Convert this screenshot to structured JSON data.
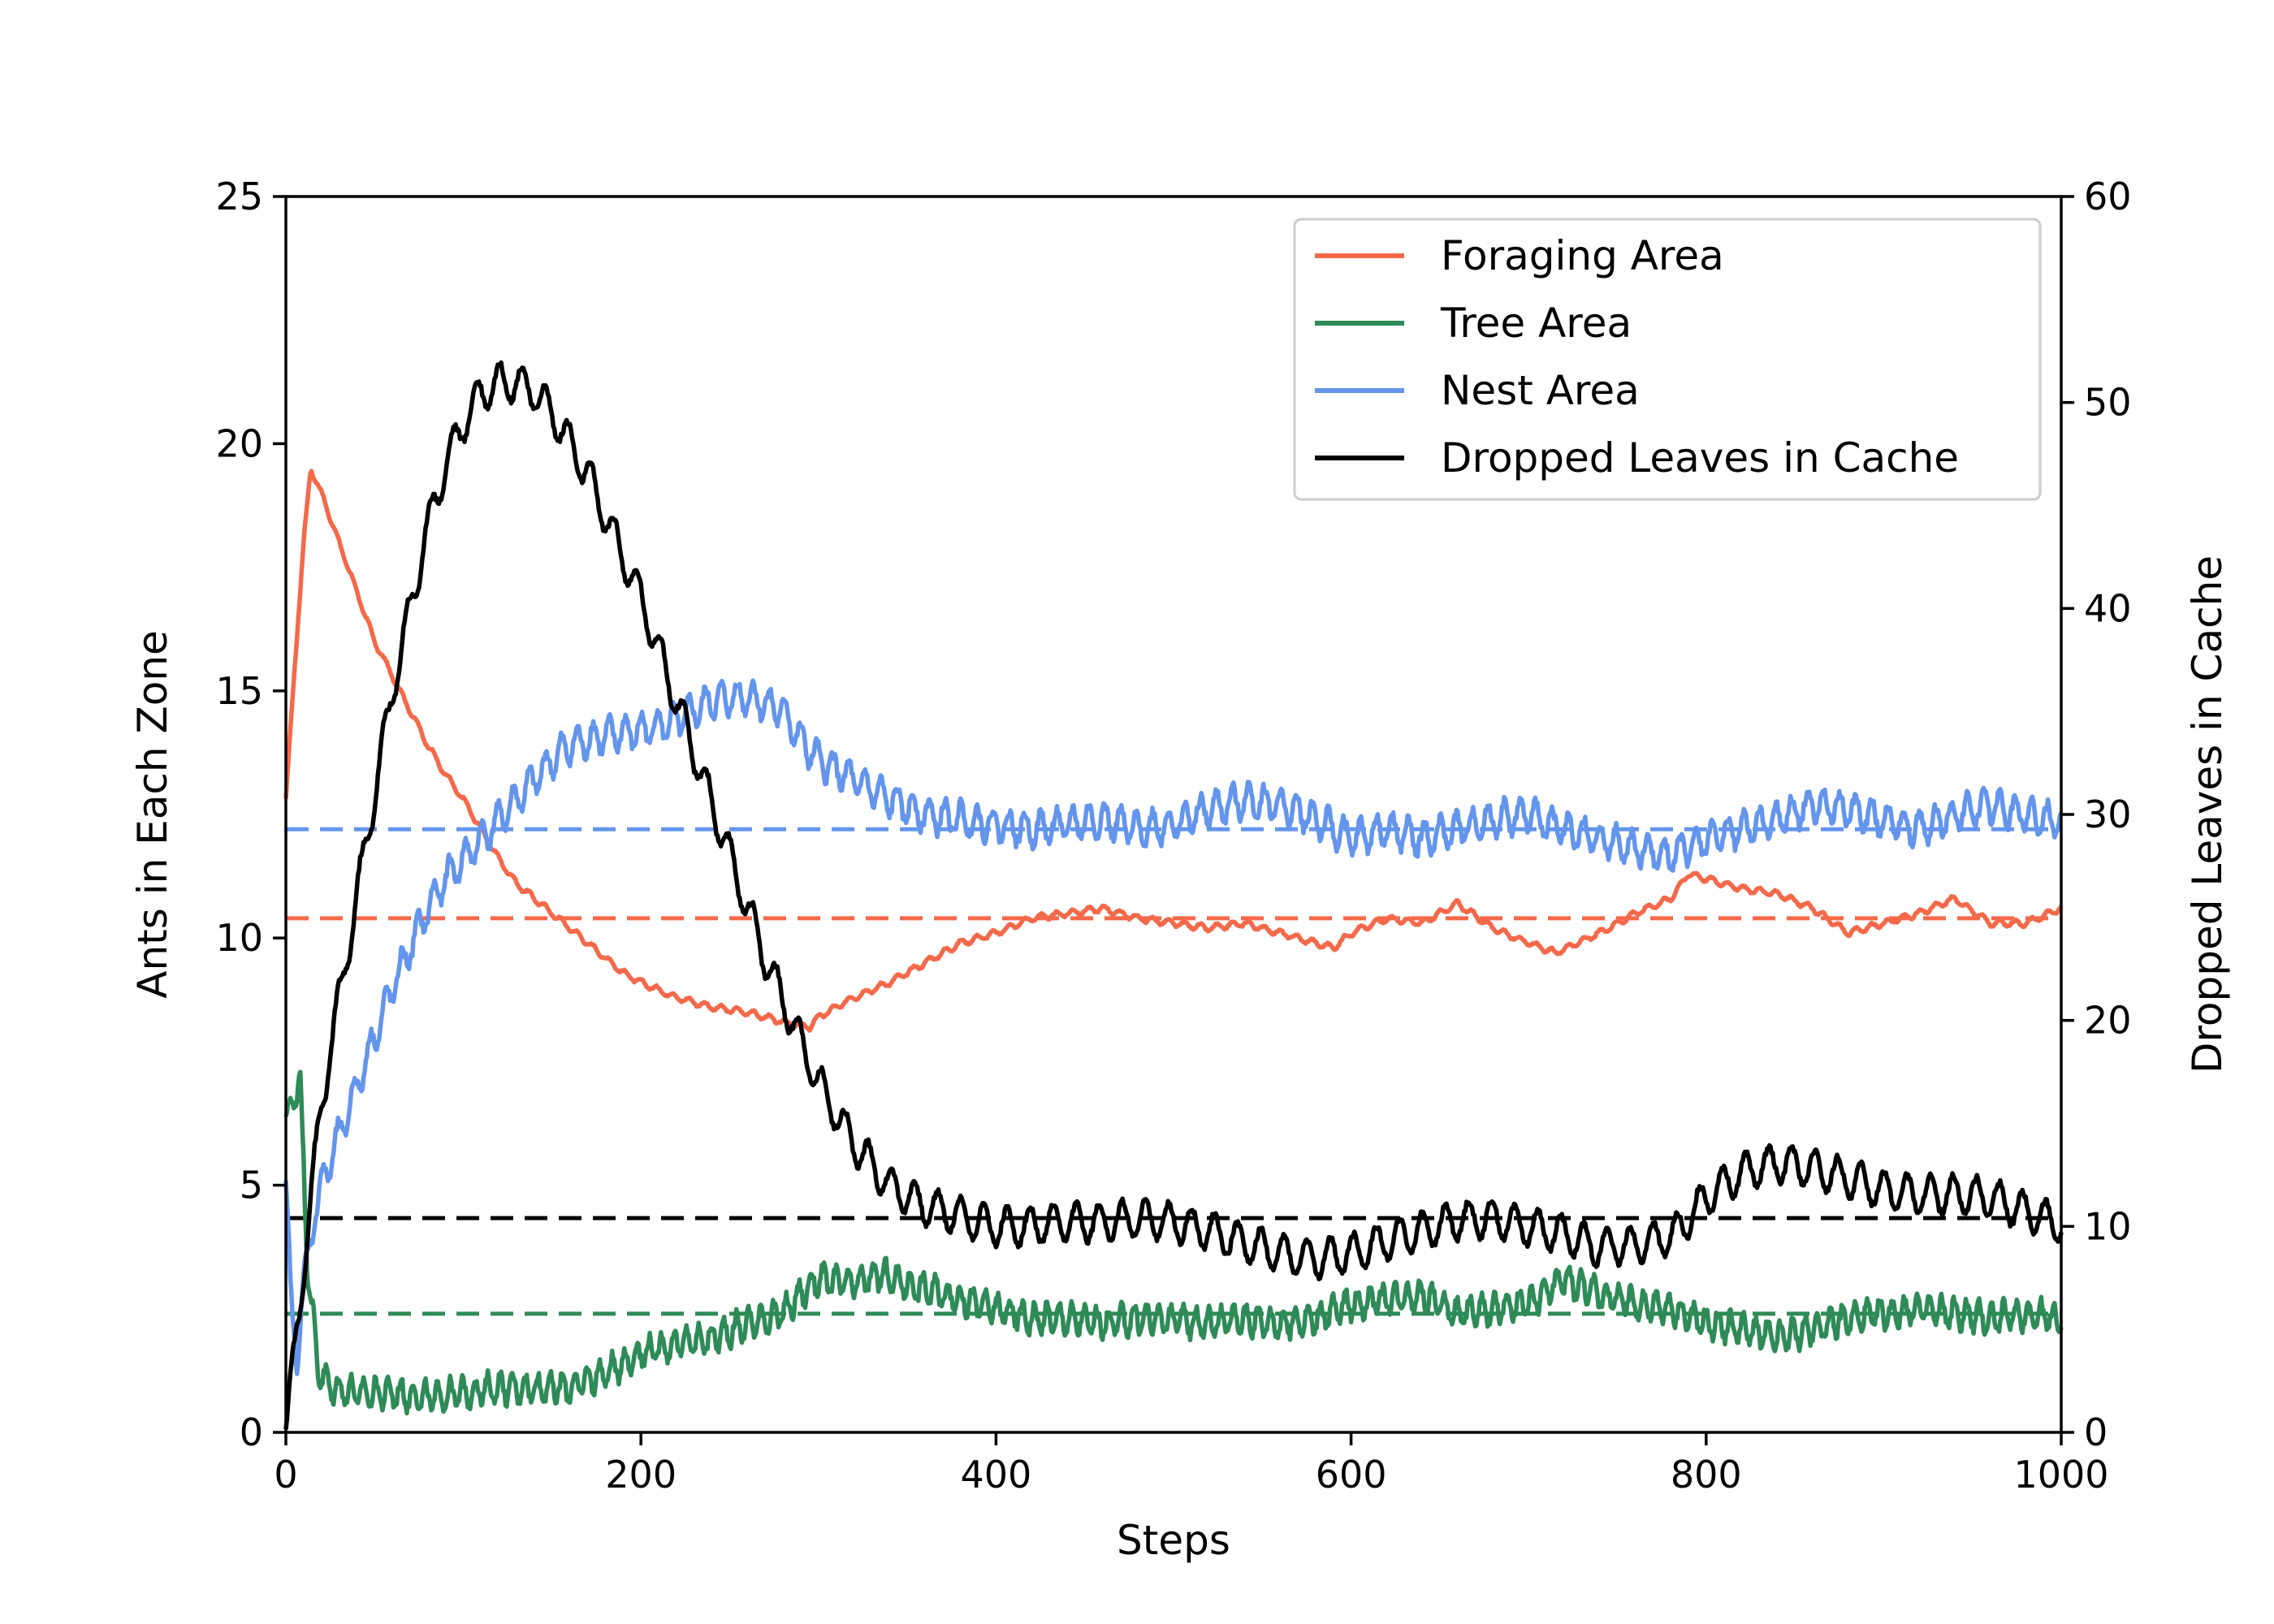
{
  "chart_data": {
    "type": "line",
    "title": "",
    "xlabel": "Steps",
    "ylabel_left": "Ants in Each Zone",
    "ylabel_right": "Dropped Leaves in Cache",
    "xlim": [
      0,
      1000
    ],
    "ylim_left": [
      0,
      25
    ],
    "ylim_right": [
      0,
      60
    ],
    "x_ticks": [
      0,
      200,
      400,
      600,
      800,
      1000
    ],
    "y_ticks_left": [
      0,
      5,
      10,
      15,
      20,
      25
    ],
    "y_ticks_right": [
      0,
      10,
      20,
      30,
      40,
      50,
      60
    ],
    "grid": false,
    "legend_position": "top-right",
    "colors": {
      "foraging": "#f4694a",
      "tree": "#2e8b57",
      "nest": "#6495ed",
      "leaves": "#000000"
    },
    "series": [
      {
        "key": "foraging",
        "name": "Foraging Area",
        "axis": "left",
        "x": [
          0,
          5,
          10,
          14,
          20,
          30,
          40,
          50,
          60,
          70,
          80,
          90,
          100,
          110,
          120,
          130,
          140,
          150,
          160,
          170,
          180,
          190,
          200,
          220,
          240,
          260,
          280,
          295,
          300,
          320,
          340,
          360,
          380,
          400,
          420,
          440,
          460,
          480,
          500,
          520,
          540,
          560,
          580,
          590,
          600,
          620,
          640,
          660,
          680,
          700,
          715,
          740,
          760,
          780,
          790,
          800,
          820,
          840,
          860,
          880,
          900,
          920,
          940,
          960,
          980,
          1000
        ],
        "y": [
          12.8,
          15.5,
          18.0,
          19.5,
          19.0,
          18.0,
          17.0,
          16.0,
          15.3,
          14.6,
          13.9,
          13.3,
          12.8,
          12.2,
          11.6,
          11.1,
          10.8,
          10.5,
          10.2,
          9.9,
          9.6,
          9.3,
          9.1,
          8.8,
          8.6,
          8.5,
          8.3,
          8.2,
          8.4,
          8.8,
          9.1,
          9.5,
          9.9,
          10.1,
          10.4,
          10.5,
          10.6,
          10.4,
          10.3,
          10.2,
          10.3,
          10.1,
          9.9,
          9.8,
          10.1,
          10.4,
          10.3,
          10.7,
          10.2,
          9.9,
          9.7,
          10.1,
          10.5,
          10.8,
          11.3,
          11.2,
          11.0,
          10.9,
          10.6,
          10.1,
          10.3,
          10.5,
          10.8,
          10.3,
          10.3,
          10.6
        ]
      },
      {
        "key": "tree",
        "name": "Tree Area",
        "axis": "left",
        "x": [
          0,
          5,
          8,
          12,
          18,
          25,
          40,
          60,
          80,
          100,
          120,
          140,
          160,
          180,
          200,
          220,
          240,
          260,
          280,
          290,
          300,
          320,
          335,
          350,
          370,
          400,
          420,
          440,
          460,
          480,
          500,
          520,
          540,
          560,
          580,
          600,
          620,
          640,
          660,
          680,
          700,
          720,
          740,
          760,
          780,
          800,
          820,
          840,
          860,
          880,
          900,
          920,
          940,
          960,
          980,
          1000
        ],
        "y": [
          6.3,
          6.8,
          7.2,
          3.5,
          1.3,
          0.9,
          0.8,
          0.8,
          0.7,
          0.8,
          0.9,
          0.9,
          0.9,
          1.2,
          1.6,
          1.8,
          1.9,
          2.2,
          2.4,
          2.8,
          3.1,
          3.0,
          3.2,
          3.0,
          2.8,
          2.5,
          2.3,
          2.3,
          2.2,
          2.3,
          2.3,
          2.2,
          2.3,
          2.2,
          2.3,
          2.6,
          2.7,
          2.8,
          2.4,
          2.5,
          2.6,
          3.1,
          2.8,
          2.6,
          2.5,
          2.2,
          2.1,
          1.9,
          2.1,
          2.3,
          2.4,
          2.5,
          2.4,
          2.3,
          2.4,
          2.3
        ]
      },
      {
        "key": "nest",
        "name": "Nest Area",
        "axis": "left",
        "x": [
          0,
          3,
          6,
          10,
          15,
          20,
          30,
          40,
          50,
          60,
          70,
          80,
          90,
          100,
          110,
          120,
          130,
          140,
          150,
          160,
          170,
          180,
          200,
          220,
          240,
          260,
          280,
          290,
          300,
          320,
          340,
          360,
          380,
          400,
          420,
          440,
          460,
          480,
          500,
          520,
          540,
          560,
          580,
          600,
          620,
          640,
          660,
          680,
          700,
          720,
          740,
          760,
          780,
          800,
          820,
          840,
          860,
          880,
          900,
          920,
          940,
          960,
          980,
          1000
        ],
        "y": [
          5.0,
          2.5,
          1.5,
          3.0,
          4.2,
          5.0,
          6.0,
          7.0,
          8.0,
          9.0,
          9.8,
          10.6,
          11.2,
          11.6,
          12.0,
          12.4,
          12.8,
          13.2,
          13.6,
          13.9,
          14.0,
          14.1,
          14.2,
          14.4,
          14.8,
          14.9,
          14.6,
          14.0,
          13.6,
          13.2,
          12.8,
          12.5,
          12.4,
          12.3,
          12.2,
          12.3,
          12.4,
          12.2,
          12.3,
          12.6,
          12.8,
          12.7,
          12.4,
          12.0,
          12.2,
          12.0,
          12.2,
          12.4,
          12.5,
          12.2,
          12.0,
          11.8,
          11.7,
          12.0,
          12.2,
          12.4,
          12.7,
          12.6,
          12.4,
          12.2,
          12.5,
          12.7,
          12.5,
          12.3
        ]
      },
      {
        "key": "leaves",
        "name": "Dropped Leaves in Cache",
        "axis": "right",
        "x": [
          0,
          5,
          10,
          15,
          20,
          30,
          40,
          50,
          60,
          70,
          80,
          90,
          100,
          110,
          120,
          130,
          140,
          150,
          160,
          170,
          180,
          190,
          200,
          210,
          220,
          230,
          240,
          250,
          260,
          270,
          280,
          290,
          300,
          310,
          320,
          330,
          340,
          350,
          360,
          380,
          400,
          420,
          440,
          460,
          480,
          500,
          520,
          540,
          560,
          580,
          600,
          620,
          640,
          660,
          680,
          700,
          720,
          740,
          760,
          780,
          790,
          800,
          820,
          840,
          860,
          880,
          900,
          920,
          940,
          960,
          980,
          1000
        ],
        "y": [
          0,
          4,
          8,
          12,
          16,
          21,
          26,
          31,
          36,
          40,
          44,
          47,
          49,
          50.5,
          51,
          51,
          50.5,
          49.5,
          48,
          46.5,
          44.5,
          42.5,
          40.5,
          38,
          35.5,
          33,
          30.5,
          28,
          25.5,
          23,
          21,
          19,
          17,
          15.5,
          14,
          13,
          12,
          11.5,
          11,
          10.5,
          10,
          10,
          10.2,
          10.2,
          10.4,
          10.2,
          9.8,
          9.2,
          8.7,
          8.4,
          8.7,
          9.3,
          9.8,
          10.3,
          10.4,
          10.0,
          9.6,
          9.0,
          9.1,
          9.5,
          10.3,
          11.5,
          12.6,
          13.1,
          12.8,
          12.3,
          11.8,
          11.5,
          11.6,
          11.4,
          10.7,
          10.1
        ]
      }
    ],
    "reference_lines": [
      {
        "key": "foraging",
        "axis": "left",
        "y": 10.4,
        "style": "dashed"
      },
      {
        "key": "tree",
        "axis": "left",
        "y": 2.4,
        "style": "dashed"
      },
      {
        "key": "nest",
        "axis": "left",
        "y": 12.2,
        "style": "dashed"
      },
      {
        "key": "leaves",
        "axis": "right",
        "y": 10.4,
        "style": "dashed"
      }
    ]
  }
}
